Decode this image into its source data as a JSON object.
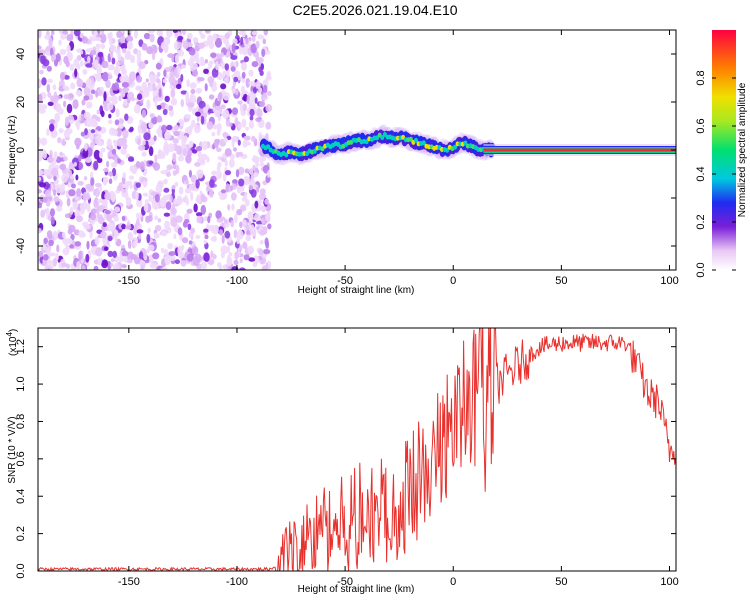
{
  "title": "C2E5.2026.021.19.04.E10",
  "colors": {
    "snr_line": "#e8312d",
    "axis": "#000000",
    "scatter": "#7a1fd8"
  },
  "chart_data": [
    {
      "type": "heatmap",
      "name": "spectrogram",
      "xlabel": "Height of straight line (km)",
      "ylabel": "Frequency (Hz)",
      "xlim": [
        -192,
        103
      ],
      "ylim": [
        -50,
        50
      ],
      "xticks": [
        -150,
        -100,
        -50,
        0,
        50,
        100
      ],
      "yticks": [
        -40,
        -20,
        0,
        20,
        40
      ],
      "noise_region_x": [
        -192,
        -85
      ],
      "signal_track": {
        "x": [
          -88,
          -84,
          -80,
          -76,
          -72,
          -68,
          -64,
          -60,
          -56,
          -52,
          -48,
          -44,
          -40,
          -36,
          -32,
          -28,
          -24,
          -20,
          -16,
          -12,
          -8,
          -4,
          0,
          4,
          8,
          12,
          16,
          100
        ],
        "freq": [
          2,
          0,
          -2,
          -1,
          -2,
          -1,
          0,
          1,
          2,
          2,
          3,
          4,
          4,
          5,
          6,
          5,
          5,
          4,
          3,
          2,
          1,
          0,
          1,
          3,
          2,
          0,
          0,
          0
        ]
      },
      "colorbar": {
        "label": "Normalized spectral amplitude",
        "range": [
          0,
          1
        ],
        "ticks": [
          "0.0",
          "0.2",
          "0.4",
          "0.6",
          "0.8"
        ]
      }
    },
    {
      "type": "line",
      "name": "snr",
      "xlabel": "Height of straight line (km)",
      "ylabel": "SNR (10 * V/V)",
      "y_multiplier": "(x10",
      "y_multiplier_exp": "4",
      "y_multiplier_close": ")",
      "xlim": [
        -192,
        103
      ],
      "ylim": [
        0,
        1.3
      ],
      "xticks": [
        -150,
        -100,
        -50,
        0,
        50,
        100
      ],
      "yticks": [
        "0.0",
        "0.2",
        "0.4",
        "0.6",
        "0.8",
        "1.0",
        "1.2"
      ],
      "envelope": {
        "x": [
          -192,
          -100,
          -85,
          -80,
          -70,
          -60,
          -50,
          -40,
          -30,
          -20,
          -10,
          0,
          10,
          20,
          30,
          40,
          50,
          60,
          70,
          80,
          85,
          90,
          95,
          100,
          103
        ],
        "y": [
          0.01,
          0.01,
          0.01,
          0.03,
          0.15,
          0.2,
          0.25,
          0.3,
          0.33,
          0.4,
          0.6,
          0.75,
          0.85,
          1.0,
          1.1,
          1.2,
          1.22,
          1.22,
          1.22,
          1.22,
          1.1,
          0.95,
          0.9,
          0.65,
          0.65
        ]
      }
    }
  ]
}
